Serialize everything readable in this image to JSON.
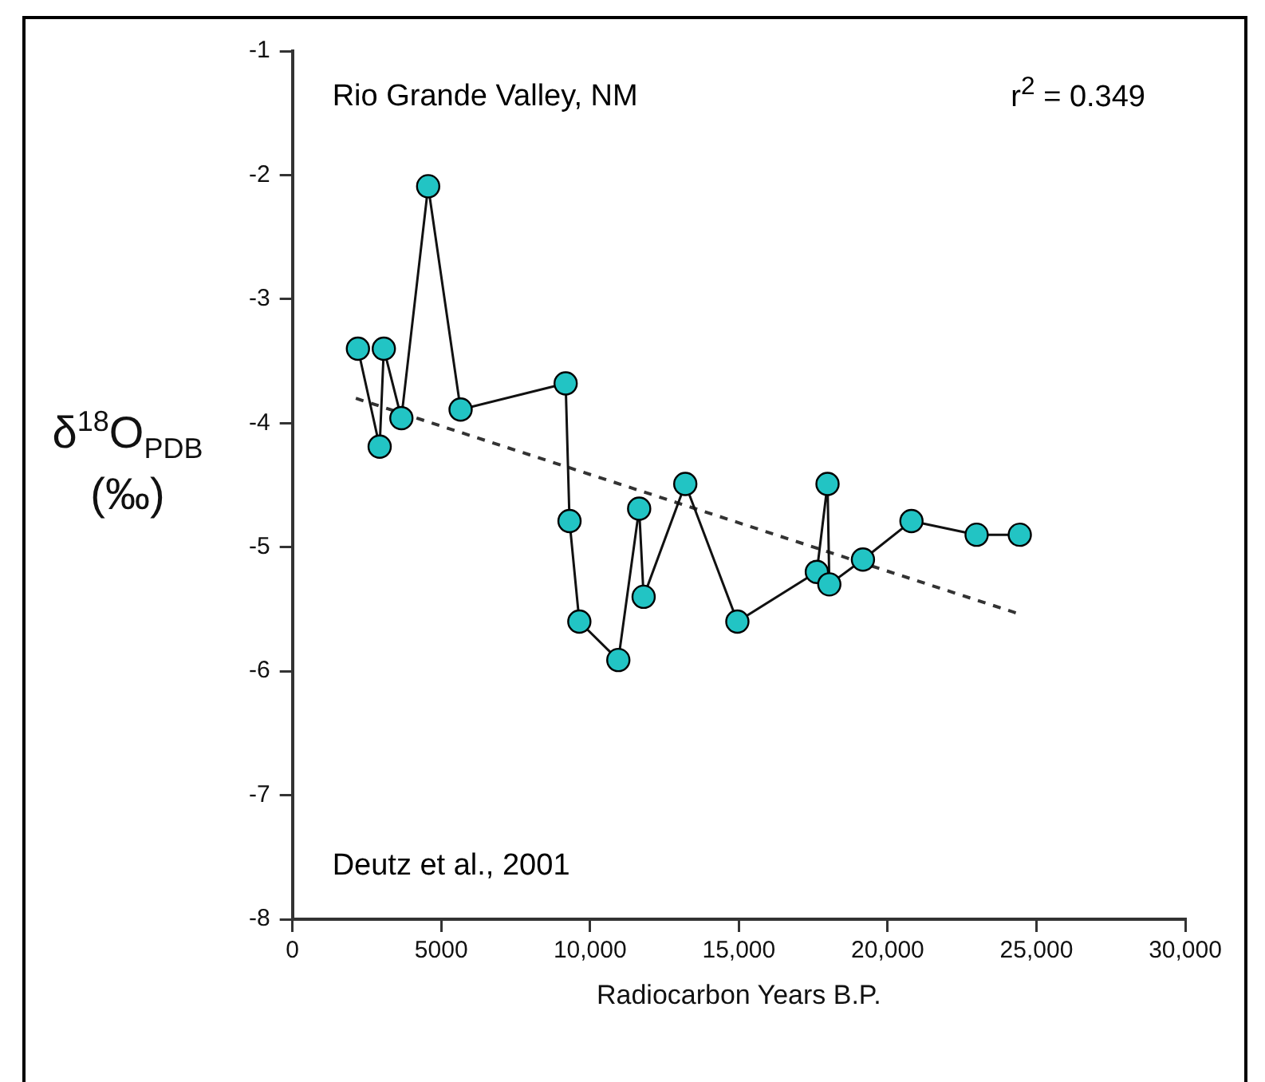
{
  "chart_data": {
    "type": "line",
    "xlabel": "Radiocarbon Years B.P.",
    "ylabel": "δ$^{18}$O$_{PDB}$ (‰)",
    "annotations": [
      "Rio Grande Valley, NM",
      "r$^{2}$ = 0.349",
      "Deutz et al., 2001"
    ],
    "xlim": [
      0,
      30000
    ],
    "xticks": [
      0,
      5000,
      {
        "value": 10000,
        "label": "10,000"
      },
      {
        "value": 15000,
        "label": "15,000"
      },
      {
        "value": 20000,
        "label": "20,000"
      },
      {
        "value": 25000,
        "label": "25,000"
      },
      {
        "value": 30000,
        "label": "30,000"
      }
    ],
    "ylim": [
      -8,
      -1
    ],
    "yticks": [
      -8,
      -7,
      -6,
      -5,
      -4,
      -3,
      -2,
      -1
    ],
    "legend": false,
    "series": [
      {
        "color": "#22c4c4",
        "marker": "circle",
        "line_style": "solid",
        "x": [
          2200,
          2930,
          3070,
          3660,
          4560,
          5650,
          9180,
          9310,
          9640,
          10950,
          11650,
          11800,
          13200,
          14950,
          17620,
          17980,
          18040,
          19170,
          20800,
          22990,
          24440
        ],
        "values": [
          -3.4,
          -4.19,
          -3.4,
          -3.96,
          -2.09,
          -3.89,
          -3.68,
          -4.79,
          -5.6,
          -5.91,
          -4.69,
          -5.4,
          -4.49,
          -5.6,
          -5.2,
          -4.49,
          -5.3,
          -5.1,
          -4.79,
          -4.9,
          -4.9
        ]
      },
      {
        "color": "#333333",
        "marker": "none",
        "line_style": "dashed",
        "x": [
          2130,
          24440
        ],
        "values": [
          -3.8,
          -5.54
        ]
      }
    ]
  }
}
